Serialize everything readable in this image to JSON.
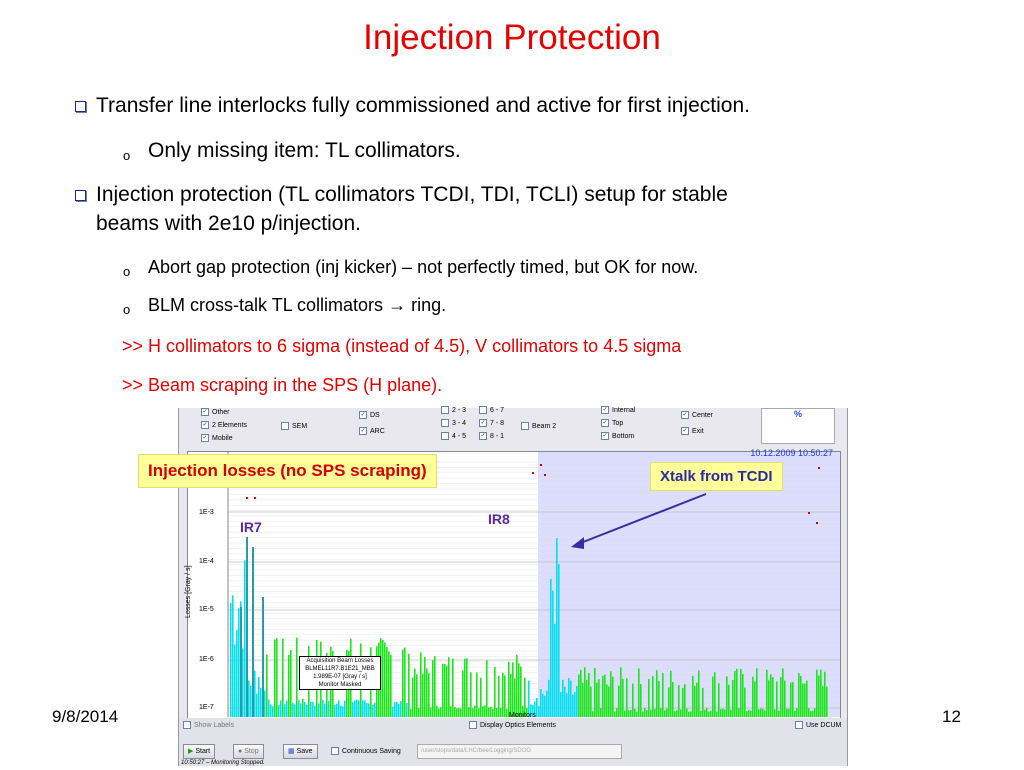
{
  "slide": {
    "title": "Injection Protection",
    "bullets": [
      "Transfer line interlocks fully commissioned and active for first injection.",
      "Injection protection (TL collimators TCDI, TDI, TCLI) setup for stable",
      "beams with 2e10 p/injection."
    ],
    "sub_bullets": [
      "Only missing item: TL collimators.",
      "Abort gap protection (inj kicker) – not perfectly timed, but OK for now.",
      "BLM cross-talk TL collimators",
      "ring."
    ],
    "red_lines": [
      ">> H collimators to 6 sigma (instead of 4.5), V collimators to 4.5 sigma",
      ">>  Beam scraping in the SPS (H plane)."
    ],
    "date": "9/8/2014",
    "page_number": "12"
  },
  "app": {
    "options": {
      "col1": [
        "Other",
        "2 Elements",
        "Mobile"
      ],
      "sem": "SEM",
      "col3": [
        "DS",
        "ARC"
      ],
      "col4": [
        "2 - 3",
        "3 - 4",
        "4 - 5"
      ],
      "col5": [
        "6 - 7",
        "7 - 8",
        "8 - 1"
      ],
      "beam": "Beam 2",
      "col7": [
        "Internal",
        "Top",
        "Bottom"
      ],
      "col8": [
        "Center",
        "Exit"
      ],
      "percent": "%"
    },
    "timestamp": "10.12.2009 10:50:27",
    "axis": {
      "ylabel": "Losses [Gray / s]",
      "yticks": [
        "1E-3",
        "1E-4",
        "1E-5",
        "1E-6",
        "1E-7"
      ],
      "xlabel": "Monitors"
    },
    "tooltip": [
      "Acquisition Beam Losses",
      "BLMEL11R7.B1E21_MBB",
      "1.989E-07 [Gray / s]",
      "Monitor Masked"
    ],
    "bottom": {
      "show_labels": "Show Labels",
      "display_optics": "Display Optics Elements",
      "use_dcum": "Use DCUM",
      "start": "Start",
      "stop": "Stop",
      "save": "Save",
      "continuous": "Continuous Saving",
      "path": "/user/slops/data/LHC/bee/Logging/SDOG",
      "status": "10:50:27 – Monitoring Stopped."
    }
  },
  "annotations": {
    "injection_losses": "Injection losses (no SPS scraping)",
    "xtalk": "Xtalk from TCDI",
    "ir7": "IR7",
    "ir8": "IR8"
  },
  "colors": {
    "title": "#e60000",
    "beam_cyan": "#00e0f0",
    "monitor_green": "#1ae61a",
    "shade": "#dcdcff",
    "annotation": "#5a2aa6",
    "highlight": "#ffff99"
  }
}
